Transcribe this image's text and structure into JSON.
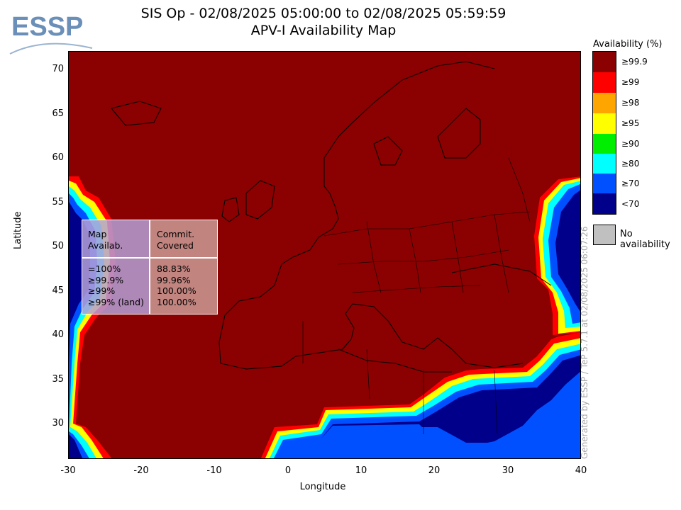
{
  "header": {
    "title_line1": "SIS Op - 02/08/2025 05:00:00 to 02/08/2025 05:59:59",
    "title_line2": "APV-I Availability Map",
    "logo_text": "ESSP"
  },
  "map": {
    "region": "Europe / North Africa",
    "x_axis": {
      "label": "Longitude",
      "min": -30,
      "max": 40,
      "ticks": [
        "-30",
        "-20",
        "-10",
        "0",
        "10",
        "20",
        "30",
        "40"
      ]
    },
    "y_axis": {
      "label": "Latitude",
      "min": 26,
      "max": 72,
      "ticks": [
        "70",
        "65",
        "60",
        "55",
        "50",
        "45",
        "40",
        "35",
        "30"
      ]
    },
    "background_color": "#8b0000",
    "no_availability_color": "#c0c0c0"
  },
  "legend": {
    "title": "Availability (%)",
    "items": [
      {
        "label": "≥99.9",
        "color": "#8b0000"
      },
      {
        "label": "≥99",
        "color": "#ff0000"
      },
      {
        "label": "≥98",
        "color": "#ffa500"
      },
      {
        "label": "≥95",
        "color": "#ffff00"
      },
      {
        "label": "≥90",
        "color": "#00ee00"
      },
      {
        "label": "≥80",
        "color": "#00ffff"
      },
      {
        "label": "≥70",
        "color": "#0050ff"
      },
      {
        "label": "<70",
        "color": "#00008b"
      }
    ],
    "no_availability": {
      "label": "No availability",
      "color": "#c0c0c0"
    }
  },
  "stats_table": {
    "header_left": "Map\nAvailab.",
    "header_right": "Commit.\nCovered",
    "rows": [
      {
        "level": "=100%",
        "value": "88.83%"
      },
      {
        "level": "≥99.9%",
        "value": "99.96%"
      },
      {
        "level": "≥99%",
        "value": "100.00%"
      },
      {
        "level": "≥99% (land)",
        "value": "100.00%"
      }
    ]
  },
  "footer": {
    "generated": "Generated by ESSP / TeP 5.7.1 at 02/08/2025 06:07:26"
  }
}
